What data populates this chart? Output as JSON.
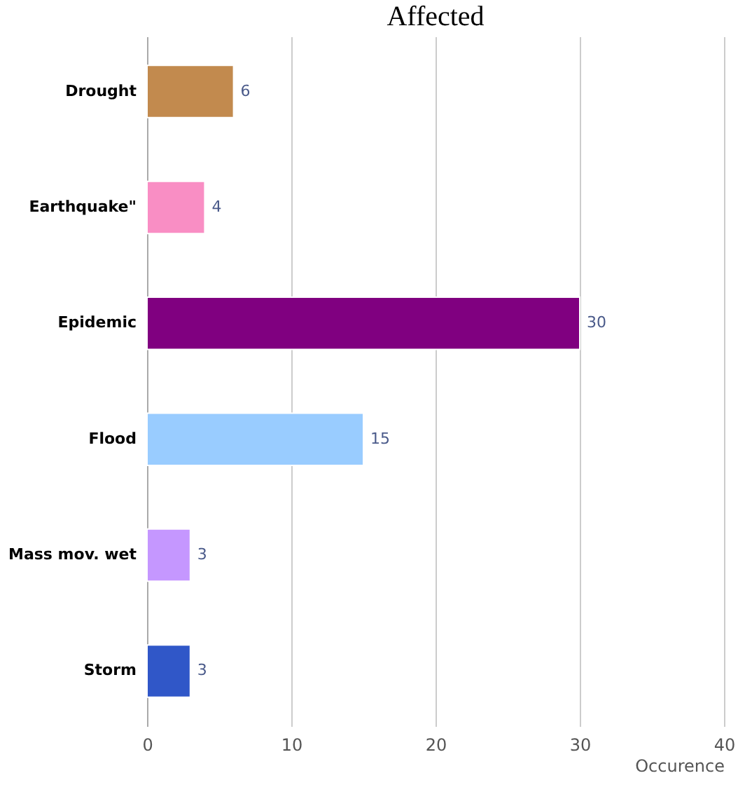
{
  "chart_data": {
    "type": "bar",
    "orientation": "horizontal",
    "title": "Affected",
    "xlabel": "Occurence",
    "categories": [
      "Drought",
      "Earthquake\"",
      "Epidemic",
      "Flood",
      "Mass mov. wet",
      "Storm"
    ],
    "values": [
      6,
      4,
      30,
      15,
      3,
      3
    ],
    "colors": [
      "#c28a4e",
      "#f98ec4",
      "#800080",
      "#99ccff",
      "#c597ff",
      "#3057c8"
    ],
    "xlim": [
      0,
      40
    ],
    "xticks": [
      0,
      10,
      20,
      30,
      40
    ],
    "grid": "x",
    "data_labels": true
  }
}
